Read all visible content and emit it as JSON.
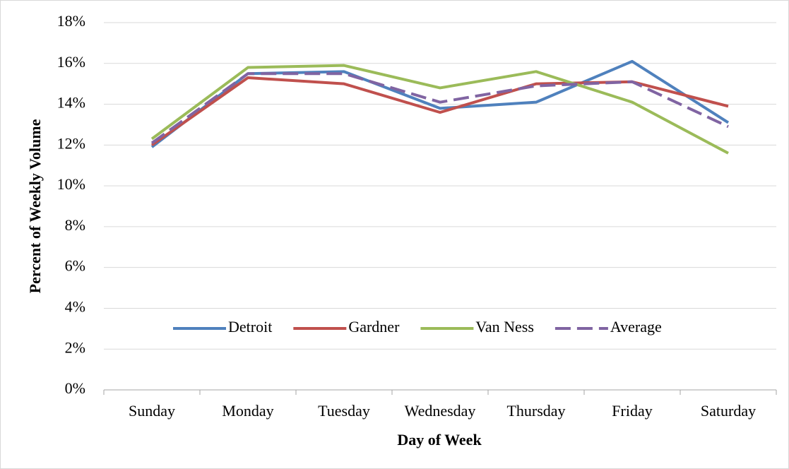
{
  "chart_data": {
    "type": "line",
    "x_label": "Day of Week",
    "y_label": "Percent of Weekly Volume",
    "categories": [
      "Sunday",
      "Monday",
      "Tuesday",
      "Wednesday",
      "Thursday",
      "Friday",
      "Saturday"
    ],
    "series": [
      {
        "name": "Detroit",
        "color": "#4f81bd",
        "dashed": false,
        "values": [
          11.9,
          15.5,
          15.6,
          13.8,
          14.1,
          16.1,
          13.1
        ]
      },
      {
        "name": "Gardner",
        "color": "#c0504d",
        "dashed": false,
        "values": [
          12.0,
          15.3,
          15.0,
          13.6,
          15.0,
          15.1,
          13.9
        ]
      },
      {
        "name": "Van Ness",
        "color": "#9bbb59",
        "dashed": false,
        "values": [
          12.3,
          15.8,
          15.9,
          14.8,
          15.6,
          14.1,
          11.6
        ]
      },
      {
        "name": "Average",
        "color": "#8064a2",
        "dashed": true,
        "values": [
          12.1,
          15.5,
          15.5,
          14.1,
          14.9,
          15.1,
          12.9
        ]
      }
    ],
    "ylim": [
      0,
      18
    ],
    "yticks": [
      {
        "value": 0,
        "label": "0%"
      },
      {
        "value": 2,
        "label": "2%"
      },
      {
        "value": 4,
        "label": "4%"
      },
      {
        "value": 6,
        "label": "6%"
      },
      {
        "value": 8,
        "label": "8%"
      },
      {
        "value": 10,
        "label": "10%"
      },
      {
        "value": 12,
        "label": "12%"
      },
      {
        "value": 14,
        "label": "14%"
      },
      {
        "value": 16,
        "label": "16%"
      },
      {
        "value": 18,
        "label": "18%"
      }
    ],
    "grid": true,
    "legend": "bottom"
  }
}
